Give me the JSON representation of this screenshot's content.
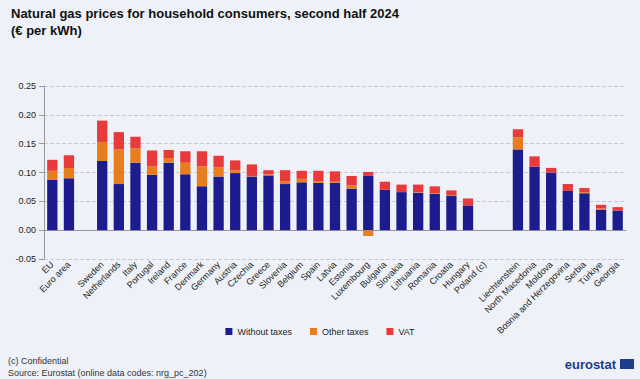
{
  "chart_data": {
    "type": "bar",
    "title": "Natural gas prices for household consumers, second half 2024",
    "subtitle": "(€ per kWh)",
    "notes": [
      "(c) Confidential",
      "Source: Eurostat (online data codes: nrg_pc_202)"
    ],
    "logo": "eurostat",
    "stacked": true,
    "grid": true,
    "legend": "bottom",
    "categories": [
      "EU",
      "Euro area",
      null,
      "Sweden",
      "Netherlands",
      "Italy",
      "Portugal",
      "Ireland",
      "France",
      "Denmark",
      "Germany",
      "Austria",
      "Czechia",
      "Greece",
      "Slovenia",
      "Belgium",
      "Spain",
      "Latvia",
      "Estonia",
      "Luxembourg",
      "Bulgaria",
      "Slovakia",
      "Lithuania",
      "Romania",
      "Croatia",
      "Hungary",
      "Poland (c)",
      null,
      "Liechtenstein",
      "North Macedonia",
      "Moldova",
      "Bosnia and Herzegovina",
      "Serbia",
      "Türkiye",
      "Georgia"
    ],
    "series": [
      {
        "name": "Without taxes",
        "color": "#1c1c8e",
        "values": [
          0.087,
          0.09,
          null,
          0.12,
          0.08,
          0.117,
          0.096,
          0.117,
          0.097,
          0.076,
          0.093,
          0.099,
          0.093,
          0.095,
          0.08,
          0.083,
          0.082,
          0.082,
          0.072,
          0.094,
          0.07,
          0.066,
          0.065,
          0.063,
          0.06,
          0.043,
          null,
          null,
          0.14,
          0.11,
          0.1,
          0.068,
          0.064,
          0.035,
          0.034
        ]
      },
      {
        "name": "Other taxes",
        "color": "#e87d1e",
        "values": [
          0.016,
          0.018,
          null,
          0.033,
          0.06,
          0.025,
          0.015,
          0.008,
          0.02,
          0.035,
          0.016,
          0.005,
          0.001,
          0.002,
          0.005,
          0.006,
          0.003,
          0.002,
          0.006,
          -0.01,
          0.0,
          0.0,
          0.001,
          0.001,
          0.001,
          0.0,
          null,
          null,
          0.021,
          0.0,
          0.0,
          0.0,
          0.002,
          0.003,
          0.0
        ]
      },
      {
        "name": "VAT",
        "color": "#e8393b",
        "values": [
          0.019,
          0.022,
          null,
          0.037,
          0.03,
          0.02,
          0.027,
          0.014,
          0.02,
          0.026,
          0.02,
          0.017,
          0.02,
          0.007,
          0.019,
          0.014,
          0.018,
          0.018,
          0.016,
          0.007,
          0.014,
          0.013,
          0.013,
          0.012,
          0.008,
          0.012,
          null,
          null,
          0.014,
          0.018,
          0.008,
          0.012,
          0.007,
          0.006,
          0.006
        ]
      }
    ],
    "ylim": [
      -0.05,
      0.25
    ],
    "yticks": [
      {
        "value": -0.05,
        "label": "-0.05"
      },
      {
        "value": 0,
        "label": "0.00"
      },
      {
        "value": 0.05,
        "label": "0.05"
      },
      {
        "value": 0.1,
        "label": "0.10"
      },
      {
        "value": 0.15,
        "label": "0.15"
      },
      {
        "value": 0.2,
        "label": "0.20"
      },
      {
        "value": 0.25,
        "label": "0.25"
      }
    ]
  }
}
